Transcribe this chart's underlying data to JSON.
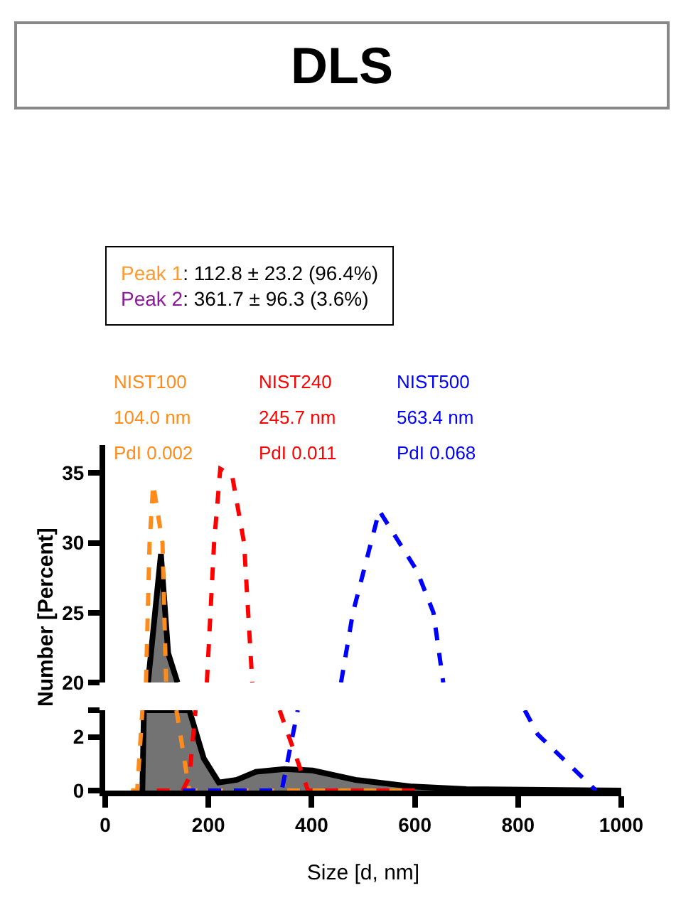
{
  "chart_data": [
    {
      "type": "line",
      "title": "DLS",
      "xlim": [
        0,
        1000
      ],
      "ylim": [
        20,
        37
      ],
      "yticks": [
        20,
        25,
        30,
        35
      ],
      "tick_labels": "y",
      "grid": false,
      "legend": false,
      "annotations": [
        "Peak 1: 112.8 ± 23.2 (96.4%)",
        "Peak 2: 361.7 ± 96.3 (3.6%)",
        "104.0 nm",
        "245.7 nm",
        "563.4 nm",
        "PdI 0.002",
        "PdI 0.011",
        "PdI 0.068"
      ],
      "series": [
        {
          "type": "area",
          "color": "#000000",
          "line_style": "solid",
          "x": [
            83,
            108,
            122,
            140
          ],
          "values": [
            20,
            29.2,
            22.1,
            20
          ]
        },
        {
          "name": "NIST100",
          "color": "#ff8c1a",
          "line_style": "dashed",
          "x": [
            79,
            86,
            93,
            111,
            118
          ],
          "values": [
            20,
            30,
            34.2,
            30,
            20
          ]
        },
        {
          "name": "NIST240",
          "color": "#ff0000",
          "line_style": "dashed",
          "x": [
            197,
            211,
            223,
            246,
            269,
            285
          ],
          "values": [
            20,
            30,
            35.3,
            34.8,
            30,
            20
          ]
        },
        {
          "name": "NIST500",
          "color": "#0000ff",
          "line_style": "dashed",
          "x": [
            457,
            480,
            531,
            604,
            636,
            655
          ],
          "values": [
            20,
            25,
            32.3,
            28.0,
            25,
            20
          ]
        }
      ]
    },
    {
      "type": "line",
      "xlabel": "Size [d, nm]",
      "ylabel": "Number [Percent]",
      "xlim": [
        0,
        1000
      ],
      "ylim": [
        0,
        3
      ],
      "xticks": [
        0,
        200,
        400,
        600,
        800,
        1000
      ],
      "yticks": [
        0,
        2,
        {
          "value": 3,
          "label": null
        }
      ],
      "grid": false,
      "legend": false,
      "series": [
        {
          "type": "area",
          "color": "#000000",
          "line_style": "solid",
          "x": [
            72,
            75,
            163,
            191,
            220,
            255,
            292,
            347,
            402,
            485,
            595,
            700,
            1000
          ],
          "values": [
            0,
            3,
            3,
            1.2,
            0.3,
            0.4,
            0.7,
            0.8,
            0.75,
            0.4,
            0.15,
            0.05,
            0
          ]
        },
        {
          "color": "#ff8c1a",
          "line_style": "dashed",
          "x": [
            50,
            62,
            72
          ],
          "values": [
            0,
            0,
            3
          ]
        },
        {
          "color": "#ff8c1a",
          "line_style": "dashed",
          "x": [
            138,
            163,
            600
          ],
          "values": [
            3,
            0,
            0
          ]
        },
        {
          "color": "#ff0000",
          "line_style": "dashed",
          "x": [
            100,
            150,
            163,
            175
          ],
          "values": [
            0,
            0,
            0.5,
            3
          ]
        },
        {
          "color": "#ff0000",
          "line_style": "dashed",
          "x": [
            338,
            393,
            600
          ],
          "values": [
            3,
            0,
            0
          ]
        },
        {
          "color": "#0000ff",
          "line_style": "dashed",
          "x": [
            150,
            342,
            373
          ],
          "values": [
            0,
            0,
            3
          ]
        },
        {
          "color": "#0000ff",
          "line_style": "dashed",
          "x": [
            813,
            838,
            951
          ],
          "values": [
            3,
            2.1,
            0
          ]
        }
      ]
    }
  ]
}
